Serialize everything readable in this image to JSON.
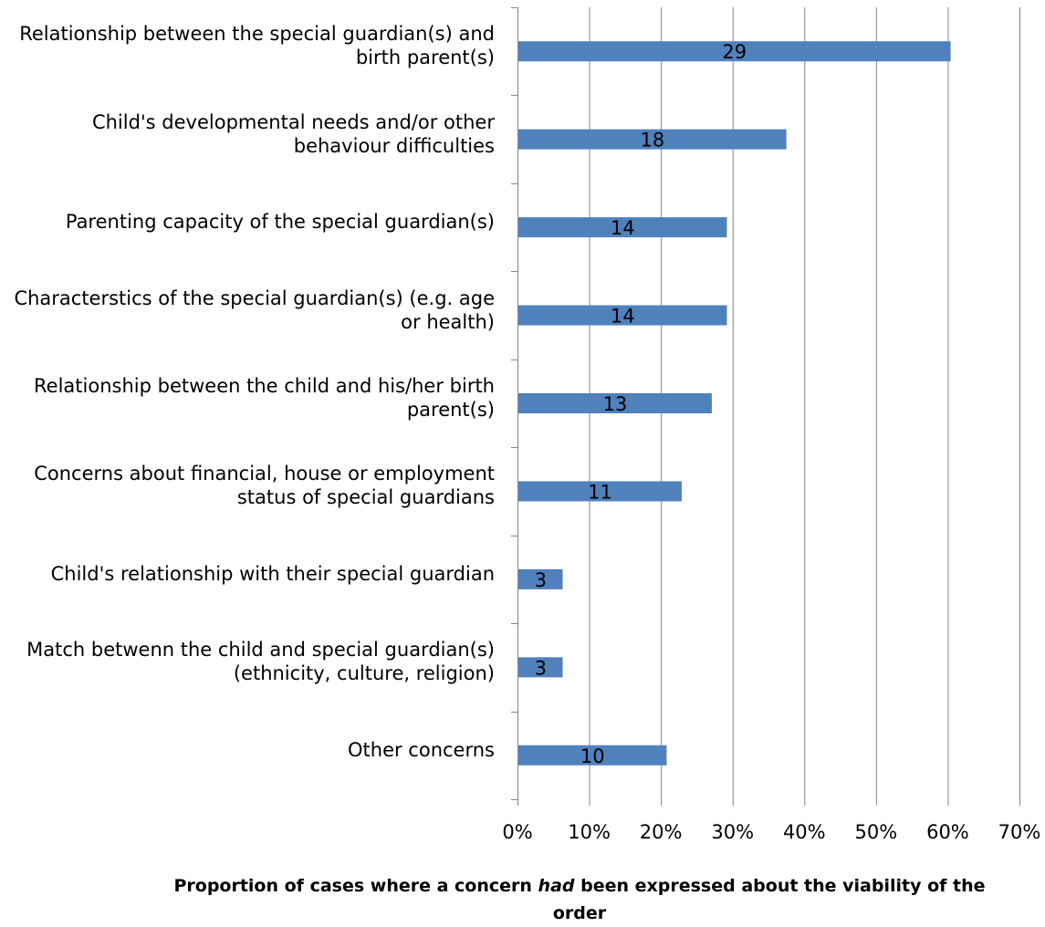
{
  "chart_data": {
    "type": "bar",
    "orientation": "horizontal",
    "categories": [
      [
        "Relationship between the special guardian(s) and",
        "birth parent(s)"
      ],
      [
        "Child's developmental needs and/or other",
        "behaviour difficulties"
      ],
      [
        "Parenting capacity of the special guardian(s)"
      ],
      [
        "Characterstics of the special guardian(s) (e.g. age",
        "or health)"
      ],
      [
        "Relationship between the child and his/her birth",
        "parent(s)"
      ],
      [
        "Concerns about financial, house or employment",
        "status of special guardians"
      ],
      [
        "Child's relationship with their special guardian"
      ],
      [
        "Match betwenn the child and special guardian(s)",
        "(ethnicity, culture, religion)"
      ],
      [
        "Other concerns"
      ]
    ],
    "values": [
      60.4,
      37.5,
      29.2,
      29.2,
      27.1,
      22.9,
      6.3,
      6.3,
      20.8
    ],
    "data_labels": [
      "29",
      "18",
      "14",
      "14",
      "13",
      "11",
      "3",
      "3",
      "10"
    ],
    "xlim": [
      0,
      70
    ],
    "xticks": [
      0,
      10,
      20,
      30,
      40,
      50,
      60,
      70
    ],
    "xtick_labels": [
      "0%",
      "10%",
      "20%",
      "30%",
      "40%",
      "50%",
      "60%",
      "70%"
    ],
    "xlabel": {
      "before": "Proportion of cases where a concern ",
      "emphasis": "had",
      "after": " been expressed about the viability of the",
      "line2": "order"
    },
    "grid": "vertical",
    "bar_color": "#4f81bd",
    "grid_color": "#868686"
  }
}
